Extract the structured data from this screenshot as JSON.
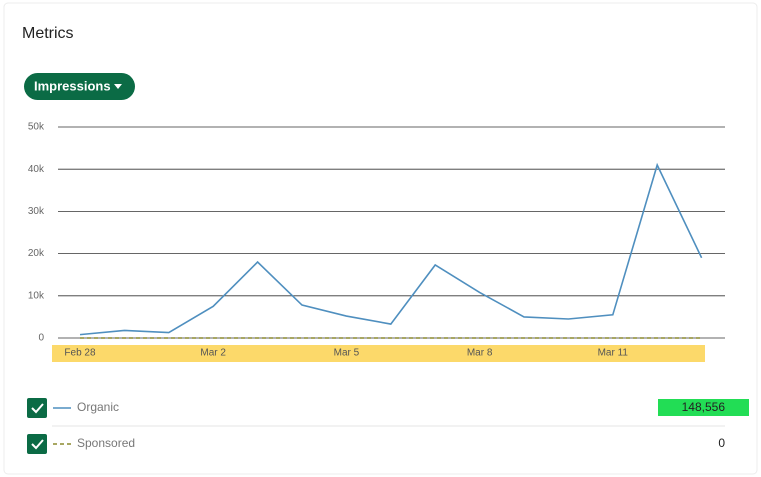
{
  "header": {
    "title": "Metrics"
  },
  "dropdown": {
    "label": "Impressions"
  },
  "chart_data": {
    "type": "line",
    "categories": [
      "Feb 28",
      null,
      null,
      "Mar 2",
      null,
      null,
      "Mar 5",
      null,
      null,
      "Mar 8",
      null,
      null,
      "Mar 11",
      null,
      null
    ],
    "series": [
      {
        "name": "Organic",
        "color": "#4f8fbf",
        "dashed": false,
        "total": "148,556",
        "values": [
          800,
          1800,
          1300,
          7500,
          18000,
          7800,
          5200,
          3300,
          17300,
          10800,
          5000,
          4500,
          5500,
          41000,
          19000
        ]
      },
      {
        "name": "Sponsored",
        "color": "#8c8a2e",
        "dashed": true,
        "total": "0",
        "values": [
          0,
          0,
          0,
          0,
          0,
          0,
          0,
          0,
          0,
          0,
          0,
          0,
          0,
          0,
          0
        ]
      }
    ],
    "ylim": [
      0,
      50000
    ],
    "yticks": [
      0,
      {
        "value": 10000,
        "label": "10k"
      },
      {
        "value": 20000,
        "label": "20k"
      },
      {
        "value": 30000,
        "label": "30k"
      },
      {
        "value": 40000,
        "label": "40k"
      },
      {
        "value": 50000,
        "label": "50k"
      }
    ],
    "grid": true
  }
}
